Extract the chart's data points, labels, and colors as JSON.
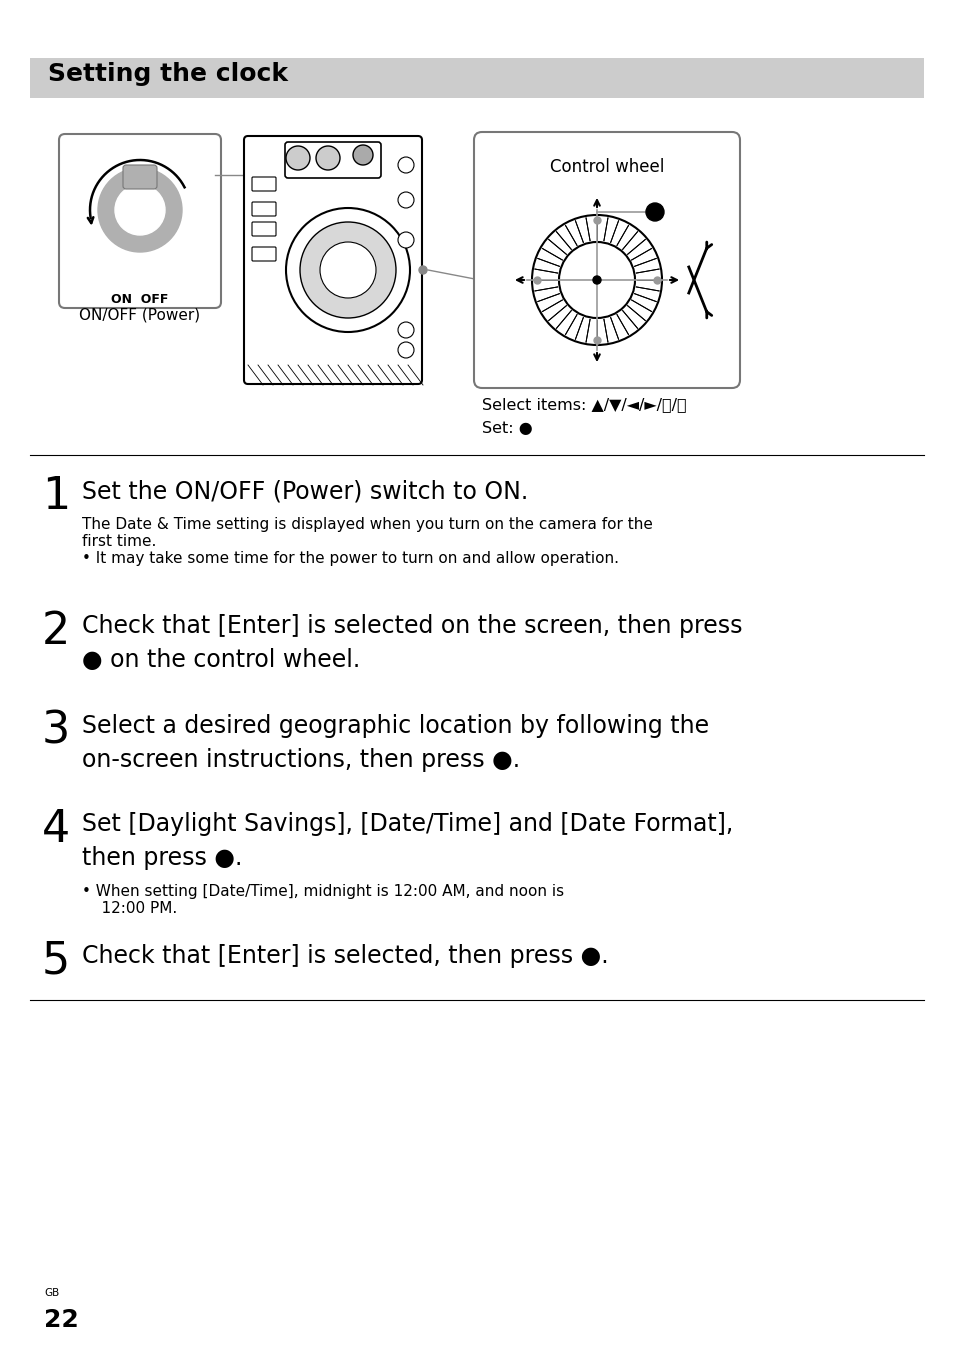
{
  "title": "Setting the clock",
  "title_bg": "#cccccc",
  "page_bg": "#ffffff",
  "step1_num": "1",
  "step1_main": "Set the ON/OFF (Power) switch to ON.",
  "step1_sub1": "The Date & Time setting is displayed when you turn on the camera for the",
  "step1_sub1b": "first time.",
  "step1_bullet": "• It may take some time for the power to turn on and allow operation.",
  "step2_num": "2",
  "step2_main1": "Check that [Enter] is selected on the screen, then press",
  "step2_main2": "● on the control wheel.",
  "step3_num": "3",
  "step3_main1": "Select a desired geographic location by following the",
  "step3_main2": "on-screen instructions, then press ●.",
  "step4_num": "4",
  "step4_main1": "Set [Daylight Savings], [Date/Time] and [Date Format],",
  "step4_main2": "then press ●.",
  "step4_bullet1": "• When setting [Date/Time], midnight is 12:00 AM, and noon is",
  "step4_bullet2": "    12:00 PM.",
  "step5_num": "5",
  "step5_main": "Check that [Enter] is selected, then press ●.",
  "caption_on_off": "ON/OFF (Power)",
  "caption_on_off_label": "ON  OFF",
  "caption_control": "Control wheel",
  "caption_select": "Select items: ▲/▼/◄/►/⤴/⤵",
  "caption_set": "Set: ●",
  "footer_text": "GB",
  "page_num": "22"
}
